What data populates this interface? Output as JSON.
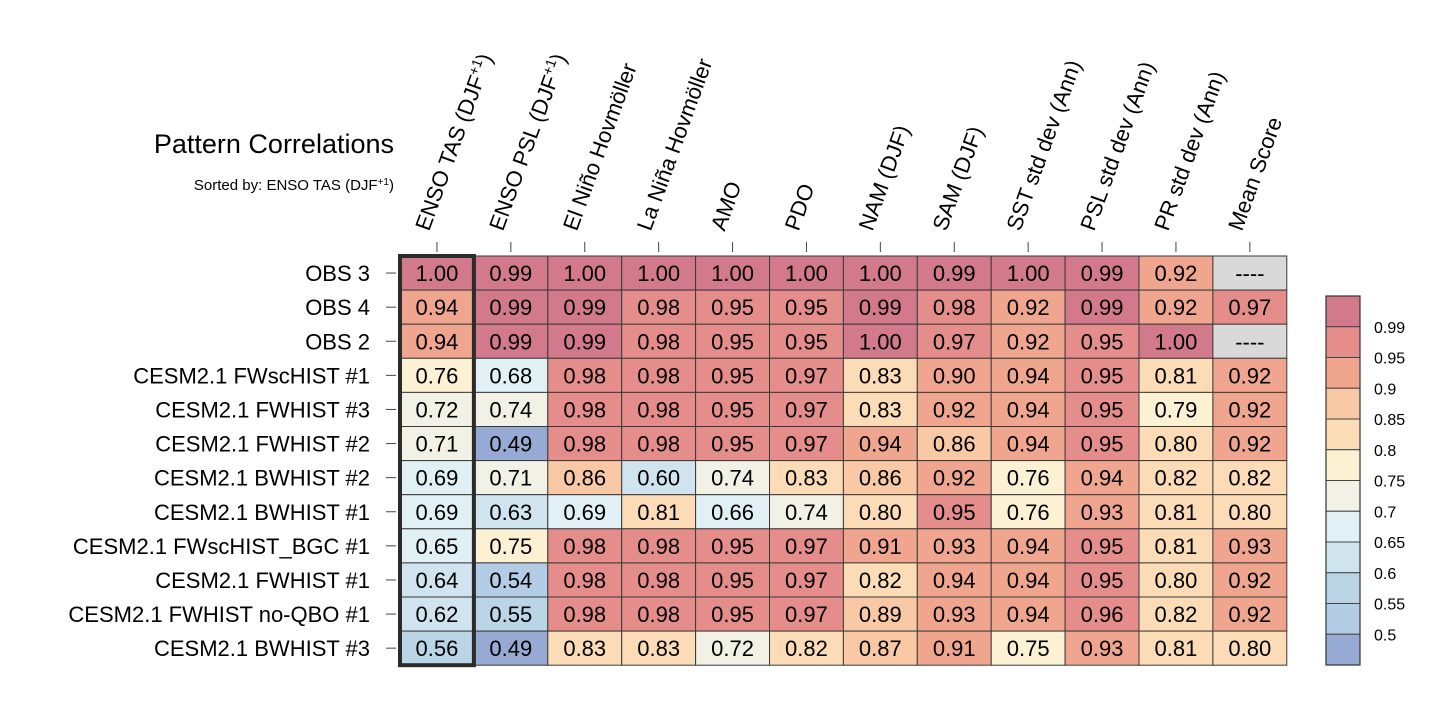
{
  "chart_data": {
    "type": "heatmap",
    "title": "Pattern Correlations",
    "subtitle_prefix": "Sorted by: ENSO TAS (DJF",
    "subtitle_sup": "+1",
    "subtitle_suffix": ")",
    "columns": [
      {
        "label": "ENSO TAS (DJF",
        "sup": "+1",
        "suffix": ")"
      },
      {
        "label": "ENSO PSL (DJF",
        "sup": "+1",
        "suffix": ")"
      },
      {
        "label": "El Niño Hovmöller"
      },
      {
        "label": "La Niña Hovmöller"
      },
      {
        "label": "AMO"
      },
      {
        "label": "PDO"
      },
      {
        "label": "NAM (DJF)"
      },
      {
        "label": "SAM (DJF)"
      },
      {
        "label": "SST std dev (Ann)"
      },
      {
        "label": "PSL std dev (Ann)"
      },
      {
        "label": "PR std dev (Ann)"
      },
      {
        "label": "Mean Score"
      }
    ],
    "rows": [
      {
        "label": "OBS 3",
        "values": [
          "1.00",
          "0.99",
          "1.00",
          "1.00",
          "1.00",
          "1.00",
          "1.00",
          "0.99",
          "1.00",
          "0.99",
          "0.92",
          "----"
        ]
      },
      {
        "label": "OBS 4",
        "values": [
          "0.94",
          "0.99",
          "0.99",
          "0.98",
          "0.95",
          "0.95",
          "0.99",
          "0.98",
          "0.92",
          "0.99",
          "0.92",
          "0.97"
        ]
      },
      {
        "label": "OBS 2",
        "values": [
          "0.94",
          "0.99",
          "0.99",
          "0.98",
          "0.95",
          "0.95",
          "1.00",
          "0.97",
          "0.92",
          "0.95",
          "1.00",
          "----"
        ]
      },
      {
        "label": "CESM2.1 FWscHIST #1",
        "values": [
          "0.76",
          "0.68",
          "0.98",
          "0.98",
          "0.95",
          "0.97",
          "0.83",
          "0.90",
          "0.94",
          "0.95",
          "0.81",
          "0.92"
        ]
      },
      {
        "label": "CESM2.1 FWHIST #3",
        "values": [
          "0.72",
          "0.74",
          "0.98",
          "0.98",
          "0.95",
          "0.97",
          "0.83",
          "0.92",
          "0.94",
          "0.95",
          "0.79",
          "0.92"
        ]
      },
      {
        "label": "CESM2.1 FWHIST #2",
        "values": [
          "0.71",
          "0.49",
          "0.98",
          "0.98",
          "0.95",
          "0.97",
          "0.94",
          "0.86",
          "0.94",
          "0.95",
          "0.80",
          "0.92"
        ]
      },
      {
        "label": "CESM2.1 BWHIST #2",
        "values": [
          "0.69",
          "0.71",
          "0.86",
          "0.60",
          "0.74",
          "0.83",
          "0.86",
          "0.92",
          "0.76",
          "0.94",
          "0.82",
          "0.82"
        ]
      },
      {
        "label": "CESM2.1 BWHIST #1",
        "values": [
          "0.69",
          "0.63",
          "0.69",
          "0.81",
          "0.66",
          "0.74",
          "0.80",
          "0.95",
          "0.76",
          "0.93",
          "0.81",
          "0.80"
        ]
      },
      {
        "label": "CESM2.1 FWscHIST_BGC #1",
        "values": [
          "0.65",
          "0.75",
          "0.98",
          "0.98",
          "0.95",
          "0.97",
          "0.91",
          "0.93",
          "0.94",
          "0.95",
          "0.81",
          "0.93"
        ]
      },
      {
        "label": "CESM2.1 FWHIST #1",
        "values": [
          "0.64",
          "0.54",
          "0.98",
          "0.98",
          "0.95",
          "0.97",
          "0.82",
          "0.94",
          "0.94",
          "0.95",
          "0.80",
          "0.92"
        ]
      },
      {
        "label": "CESM2.1 FWHIST no-QBO #1",
        "values": [
          "0.62",
          "0.55",
          "0.98",
          "0.98",
          "0.95",
          "0.97",
          "0.89",
          "0.93",
          "0.94",
          "0.96",
          "0.82",
          "0.92"
        ]
      },
      {
        "label": "CESM2.1 BWHIST #3",
        "values": [
          "0.56",
          "0.49",
          "0.83",
          "0.83",
          "0.72",
          "0.82",
          "0.87",
          "0.91",
          "0.75",
          "0.93",
          "0.81",
          "0.80"
        ]
      }
    ],
    "highlighted_column": 0,
    "missing_color": "#d9d9d9",
    "colorbar": {
      "labels": [
        "0.99",
        "0.95",
        "0.9",
        "0.85",
        "0.8",
        "0.75",
        "0.7",
        "0.65",
        "0.6",
        "0.55",
        "0.5"
      ],
      "bins": [
        {
          "min": 0.99,
          "color": "#d27a8b"
        },
        {
          "min": 0.95,
          "color": "#e58d8a"
        },
        {
          "min": 0.9,
          "color": "#f0a68e"
        },
        {
          "min": 0.85,
          "color": "#f9c8a4"
        },
        {
          "min": 0.8,
          "color": "#fcdcb6"
        },
        {
          "min": 0.75,
          "color": "#fdf1d4"
        },
        {
          "min": 0.7,
          "color": "#f1f1e5"
        },
        {
          "min": 0.65,
          "color": "#e1f0f4"
        },
        {
          "min": 0.6,
          "color": "#cfe4ee"
        },
        {
          "min": 0.55,
          "color": "#bad6e6"
        },
        {
          "min": 0.5,
          "color": "#b3cde6"
        },
        {
          "min": -1.0,
          "color": "#96aad3"
        }
      ]
    }
  }
}
